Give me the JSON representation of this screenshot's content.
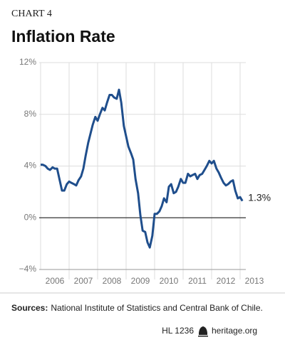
{
  "chart_data": {
    "type": "line",
    "label": "CHART 4",
    "title": "Inflation Rate",
    "x": [
      2006.0,
      2006.08,
      2006.17,
      2006.25,
      2006.33,
      2006.42,
      2006.5,
      2006.58,
      2006.67,
      2006.75,
      2006.83,
      2006.92,
      2007.0,
      2007.08,
      2007.17,
      2007.25,
      2007.33,
      2007.42,
      2007.5,
      2007.58,
      2007.67,
      2007.75,
      2007.83,
      2007.92,
      2008.0,
      2008.08,
      2008.17,
      2008.25,
      2008.33,
      2008.42,
      2008.5,
      2008.58,
      2008.67,
      2008.75,
      2008.83,
      2008.92,
      2009.0,
      2009.08,
      2009.17,
      2009.25,
      2009.33,
      2009.42,
      2009.5,
      2009.58,
      2009.67,
      2009.75,
      2009.83,
      2009.92,
      2010.0,
      2010.08,
      2010.17,
      2010.25,
      2010.33,
      2010.42,
      2010.5,
      2010.58,
      2010.67,
      2010.75,
      2010.83,
      2010.92,
      2011.0,
      2011.08,
      2011.17,
      2011.25,
      2011.33,
      2011.42,
      2011.5,
      2011.58,
      2011.67,
      2011.75,
      2011.83,
      2011.92,
      2012.0,
      2012.08,
      2012.17,
      2012.25,
      2012.33,
      2012.42,
      2012.5,
      2012.58,
      2012.67,
      2012.75,
      2012.83,
      2012.92,
      2013.0,
      2013.08
    ],
    "series": [
      {
        "color": "#1f4e8c",
        "values": [
          4.1,
          4.1,
          4.0,
          3.8,
          3.7,
          3.9,
          3.8,
          3.8,
          2.9,
          2.1,
          2.1,
          2.6,
          2.8,
          2.7,
          2.6,
          2.5,
          2.9,
          3.2,
          3.8,
          4.8,
          5.8,
          6.5,
          7.2,
          7.8,
          7.5,
          8.0,
          8.5,
          8.3,
          8.9,
          9.5,
          9.5,
          9.3,
          9.2,
          9.9,
          8.9,
          7.1,
          6.3,
          5.5,
          5.0,
          4.5,
          3.0,
          1.9,
          0.2,
          -1.0,
          -1.1,
          -1.9,
          -2.3,
          -1.4,
          0.3,
          0.3,
          0.5,
          0.9,
          1.5,
          1.2,
          2.4,
          2.6,
          1.9,
          2.0,
          2.4,
          3.0,
          2.7,
          2.7,
          3.4,
          3.2,
          3.3,
          3.4,
          3.0,
          3.3,
          3.4,
          3.7,
          4.0,
          4.4,
          4.2,
          4.4,
          3.8,
          3.5,
          3.1,
          2.7,
          2.5,
          2.6,
          2.8,
          2.9,
          2.1,
          1.5,
          1.6,
          1.3
        ],
        "value_labels": [
          null,
          null,
          null,
          null,
          null,
          null,
          null,
          null,
          null,
          null,
          null,
          null,
          null,
          null,
          null,
          null,
          null,
          null,
          null,
          null,
          null,
          null,
          null,
          null,
          null,
          null,
          null,
          null,
          null,
          null,
          null,
          null,
          null,
          null,
          null,
          null,
          null,
          null,
          null,
          null,
          null,
          null,
          null,
          null,
          null,
          null,
          null,
          null,
          null,
          null,
          null,
          null,
          null,
          null,
          null,
          null,
          null,
          null,
          null,
          null,
          null,
          null,
          null,
          null,
          null,
          null,
          null,
          null,
          null,
          null,
          null,
          null,
          null,
          null,
          null,
          null,
          null,
          null,
          null,
          null,
          null,
          null,
          null,
          null,
          null,
          "1.3%"
        ]
      }
    ],
    "xlim": [
      2006,
      2013.2
    ],
    "xticks": [
      {
        "value": 2006.5,
        "label": "2006"
      },
      {
        "value": 2007.5,
        "label": "2007"
      },
      {
        "value": 2008.5,
        "label": "2008"
      },
      {
        "value": 2009.5,
        "label": "2009"
      },
      {
        "value": 2010.5,
        "label": "2010"
      },
      {
        "value": 2011.5,
        "label": "2011"
      },
      {
        "value": 2012.5,
        "label": "2012"
      },
      {
        "value": 2013.5,
        "label": "2013"
      }
    ],
    "xgrid": [
      2007,
      2008,
      2009,
      2010,
      2011,
      2012,
      2013
    ],
    "ylim": [
      -4,
      12
    ],
    "yticks": [
      {
        "value": -4,
        "label": "−4%"
      },
      {
        "value": 0,
        "label": "0%"
      },
      {
        "value": 4,
        "label": "4%"
      },
      {
        "value": 8,
        "label": "8%"
      },
      {
        "value": 12,
        "label": "12%"
      }
    ],
    "grid": true,
    "source_label": "Sources:",
    "source": "National Institute of Statistics and Central Bank of Chile.",
    "report": "HL 1236",
    "site": "heritage.org"
  }
}
